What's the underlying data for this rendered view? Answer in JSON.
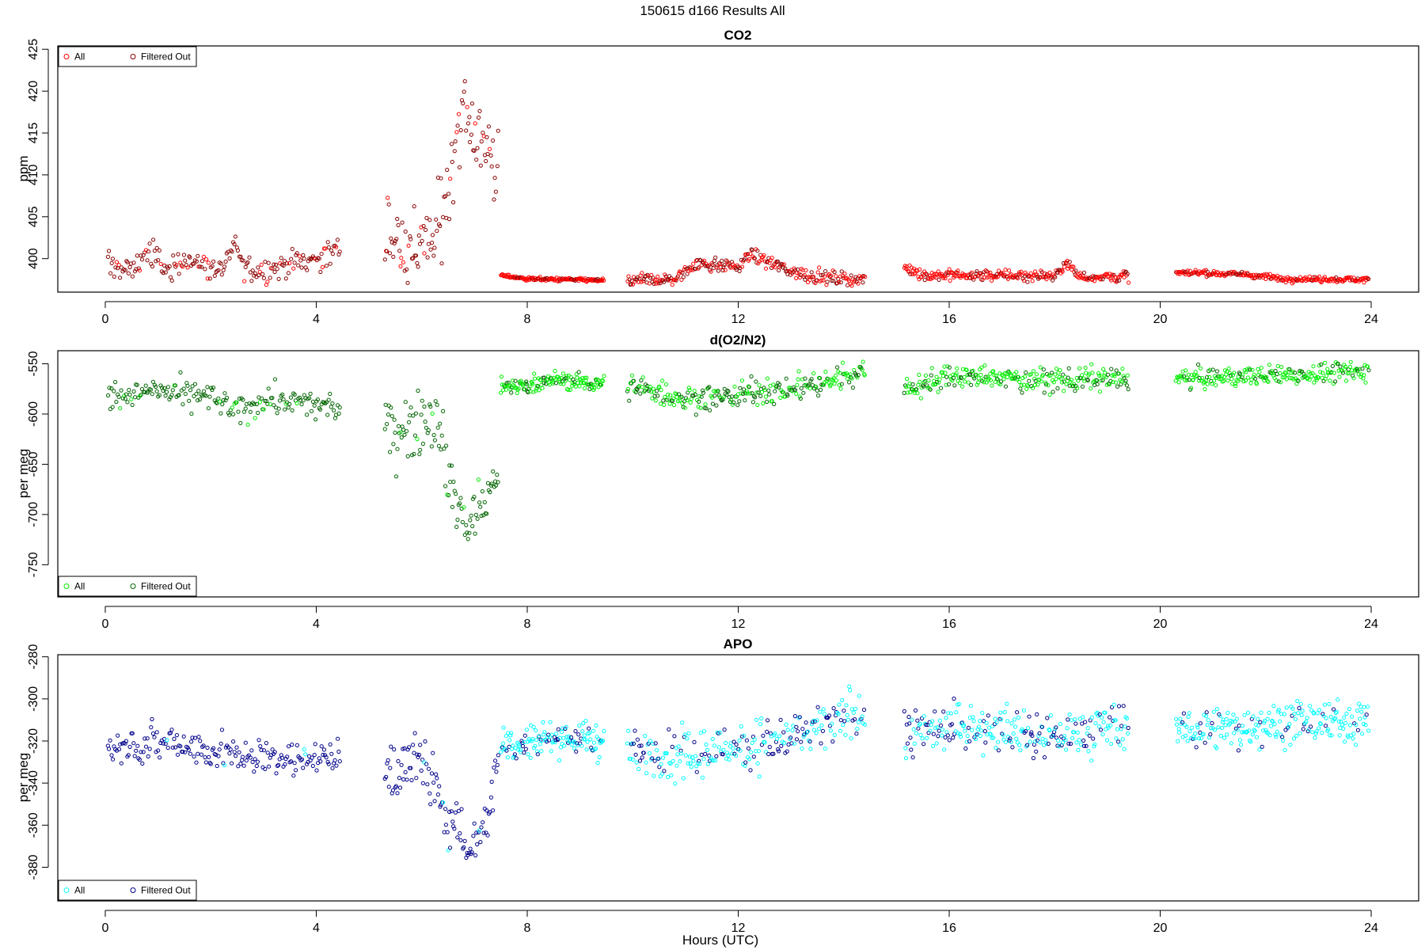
{
  "figure": {
    "title": "150615   d166   Results All",
    "xlabel": "Hours (UTC)"
  },
  "chart_data": [
    {
      "type": "scatter",
      "title": "CO2",
      "ylabel": "ppm",
      "xlim": [
        -0.9,
        24.9
      ],
      "ylim": [
        396.0,
        425.4
      ],
      "x_ticks": [
        0,
        4,
        8,
        12,
        16,
        20,
        24
      ],
      "y_ticks": [
        400,
        405,
        410,
        415,
        420,
        425
      ],
      "legend": {
        "position": "top-left",
        "entries": [
          {
            "label": "All",
            "color": "#ff0000",
            "marker": "open-circle"
          },
          {
            "label": "Filtered Out",
            "color": "#8b0000",
            "marker": "open-circle"
          }
        ]
      },
      "series": [
        {
          "name": "All",
          "color": "#ff0000",
          "segments": [
            {
              "x_range": [
                0.05,
                4.45
              ],
              "levels": [
                [
                  0,
                  399.5
                ],
                [
                  0.5,
                  398.5
                ],
                [
                  0.8,
                  401
                ],
                [
                  1.2,
                  398.5
                ],
                [
                  1.5,
                  400
                ],
                [
                  2.2,
                  398.5
                ],
                [
                  2.5,
                  402
                ],
                [
                  2.6,
                  399
                ],
                [
                  3,
                  398.5
                ],
                [
                  3.5,
                  399.5
                ],
                [
                  4,
                  400
                ],
                [
                  4.45,
                  401
                ]
              ],
              "noise": 1.1,
              "n": 190,
              "pct": 0.15
            },
            {
              "x_range": [
                5.3,
                7.45
              ],
              "levels": [
                [
                  5.3,
                  403.5
                ],
                [
                  5.7,
                  401
                ],
                [
                  6.2,
                  402
                ],
                [
                  6.4,
                  405
                ],
                [
                  6.6,
                  413
                ],
                [
                  6.8,
                  419
                ],
                [
                  7.0,
                  415
                ],
                [
                  7.2,
                  414
                ],
                [
                  7.45,
                  410
                ]
              ],
              "noise": 3.5,
              "n": 110,
              "pct": 0.1
            },
            {
              "x_range": [
                7.5,
                9.45
              ],
              "levels": [
                [
                  7.5,
                  398
                ],
                [
                  8,
                  397.6
                ],
                [
                  9.45,
                  397.4
                ]
              ],
              "noise": 0.15,
              "n": 140,
              "pct": 0.85
            },
            {
              "x_range": [
                9.9,
                14.4
              ],
              "levels": [
                [
                  9.9,
                  397.4
                ],
                [
                  10.8,
                  397.5
                ],
                [
                  11.2,
                  399.5
                ],
                [
                  12,
                  399
                ],
                [
                  12.2,
                  400.5
                ],
                [
                  13,
                  398.5
                ],
                [
                  13.5,
                  397.8
                ],
                [
                  14.4,
                  397.5
                ]
              ],
              "noise": 0.55,
              "n": 260,
              "pct": 0.55
            },
            {
              "x_range": [
                15.15,
                19.4
              ],
              "levels": [
                [
                  15.15,
                  399
                ],
                [
                  15.5,
                  398
                ],
                [
                  18,
                  398
                ],
                [
                  18.2,
                  399.5
                ],
                [
                  18.5,
                  397.8
                ],
                [
                  19.4,
                  397.9
                ]
              ],
              "noise": 0.45,
              "n": 260,
              "pct": 0.75
            },
            {
              "x_range": [
                20.3,
                23.95
              ],
              "levels": [
                [
                  20.3,
                  398.3
                ],
                [
                  21.5,
                  398.2
                ],
                [
                  22.3,
                  397.6
                ],
                [
                  23.95,
                  397.5
                ]
              ],
              "noise": 0.25,
              "n": 220,
              "pct": 0.85
            }
          ]
        }
      ]
    },
    {
      "type": "scatter",
      "title": "d(O2/N2)",
      "ylabel": "per meg",
      "xlim": [
        -0.9,
        24.9
      ],
      "ylim": [
        -782,
        -537
      ],
      "x_ticks": [
        0,
        4,
        8,
        12,
        16,
        20,
        24
      ],
      "y_ticks": [
        -550,
        -600,
        -650,
        -700,
        -750
      ],
      "legend": {
        "position": "bottom-left",
        "entries": [
          {
            "label": "All",
            "color": "#00ee00",
            "marker": "open-circle"
          },
          {
            "label": "Filtered Out",
            "color": "#006400",
            "marker": "open-circle"
          }
        ]
      },
      "series": [
        {
          "name": "All",
          "color": "#00ee00",
          "segments": [
            {
              "x_range": [
                0.05,
                4.45
              ],
              "levels": [
                [
                  0,
                  -583
                ],
                [
                  1,
                  -578
                ],
                [
                  2,
                  -583
                ],
                [
                  2.5,
                  -600
                ],
                [
                  3,
                  -585
                ],
                [
                  4.45,
                  -595
                ]
              ],
              "noise": 10,
              "n": 190,
              "pct": 0.1
            },
            {
              "x_range": [
                5.3,
                7.45
              ],
              "levels": [
                [
                  5.3,
                  -615
                ],
                [
                  5.8,
                  -610
                ],
                [
                  6.3,
                  -598
                ],
                [
                  6.5,
                  -660
                ],
                [
                  6.8,
                  -710
                ],
                [
                  7.2,
                  -690
                ],
                [
                  7.45,
                  -650
                ]
              ],
              "noise": 22,
              "n": 110,
              "pct": 0.08
            },
            {
              "x_range": [
                7.5,
                9.45
              ],
              "levels": [
                [
                  7.5,
                  -575
                ],
                [
                  8.5,
                  -566
                ],
                [
                  9.45,
                  -570
                ]
              ],
              "noise": 6,
              "n": 140,
              "pct": 0.8
            },
            {
              "x_range": [
                9.9,
                14.4
              ],
              "levels": [
                [
                  9.9,
                  -572
                ],
                [
                  11,
                  -585
                ],
                [
                  12,
                  -580
                ],
                [
                  13,
                  -575
                ],
                [
                  13.8,
                  -566
                ],
                [
                  14.4,
                  -555
                ]
              ],
              "noise": 9,
              "n": 260,
              "pct": 0.55
            },
            {
              "x_range": [
                15.15,
                19.4
              ],
              "levels": [
                [
                  15.15,
                  -575
                ],
                [
                  16,
                  -563
                ],
                [
                  18,
                  -566
                ],
                [
                  19.4,
                  -565
                ]
              ],
              "noise": 8,
              "n": 260,
              "pct": 0.7
            },
            {
              "x_range": [
                20.3,
                23.95
              ],
              "levels": [
                [
                  20.3,
                  -565
                ],
                [
                  23.95,
                  -558
                ]
              ],
              "noise": 7,
              "n": 220,
              "pct": 0.8
            }
          ]
        }
      ]
    },
    {
      "type": "scatter",
      "title": "APO",
      "ylabel": "per meg",
      "xlim": [
        -0.9,
        24.9
      ],
      "ylim": [
        -396,
        -279
      ],
      "x_ticks": [
        0,
        4,
        8,
        12,
        16,
        20,
        24
      ],
      "y_ticks": [
        -280,
        -300,
        -320,
        -340,
        -360,
        -380
      ],
      "legend": {
        "position": "bottom-left",
        "entries": [
          {
            "label": "All",
            "color": "#00ffff",
            "marker": "open-circle"
          },
          {
            "label": "Filtered Out",
            "color": "#00008b",
            "marker": "open-circle"
          }
        ]
      },
      "series": [
        {
          "name": "All",
          "color": "#00ffff",
          "segments": [
            {
              "x_range": [
                0.05,
                4.45
              ],
              "levels": [
                [
                  0,
                  -323
                ],
                [
                  1.3,
                  -320
                ],
                [
                  2.5,
                  -328
                ],
                [
                  4.45,
                  -328
                ]
              ],
              "noise": 6,
              "n": 190,
              "pct": 0.03
            },
            {
              "x_range": [
                5.3,
                7.45
              ],
              "levels": [
                [
                  5.3,
                  -335
                ],
                [
                  6,
                  -330
                ],
                [
                  6.5,
                  -355
                ],
                [
                  6.9,
                  -372
                ],
                [
                  7.3,
                  -352
                ],
                [
                  7.45,
                  -320
                ]
              ],
              "noise": 10,
              "n": 110,
              "pct": 0.03
            },
            {
              "x_range": [
                7.5,
                9.45
              ],
              "levels": [
                [
                  7.5,
                  -322
                ],
                [
                  8.5,
                  -318
                ],
                [
                  9.45,
                  -320
                ]
              ],
              "noise": 6,
              "n": 140,
              "pct": 0.8
            },
            {
              "x_range": [
                9.9,
                14.4
              ],
              "levels": [
                [
                  9.9,
                  -325
                ],
                [
                  11,
                  -328
                ],
                [
                  12,
                  -322
                ],
                [
                  13.2,
                  -318
                ],
                [
                  14.4,
                  -306
                ]
              ],
              "noise": 8,
              "n": 260,
              "pct": 0.55
            },
            {
              "x_range": [
                15.15,
                19.4
              ],
              "levels": [
                [
                  15.15,
                  -318
                ],
                [
                  16,
                  -312
                ],
                [
                  18,
                  -318
                ],
                [
                  19.4,
                  -312
                ]
              ],
              "noise": 8,
              "n": 260,
              "pct": 0.65
            },
            {
              "x_range": [
                20.3,
                23.95
              ],
              "levels": [
                [
                  20.3,
                  -315
                ],
                [
                  23.95,
                  -310
                ]
              ],
              "noise": 7,
              "n": 220,
              "pct": 0.8
            }
          ]
        }
      ]
    }
  ]
}
